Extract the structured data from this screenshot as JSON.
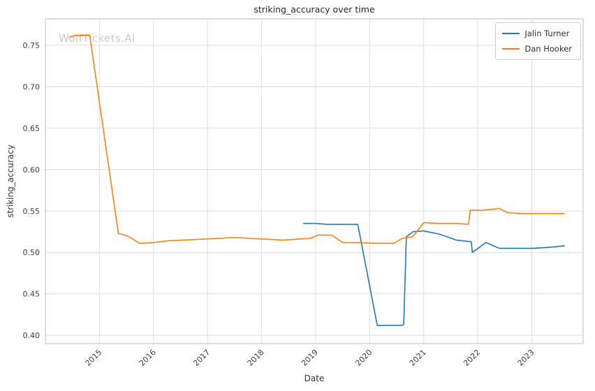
{
  "watermark": "WolfTickets.AI",
  "chart_data": {
    "type": "line",
    "title": "striking_accuracy over time",
    "xlabel": "Date",
    "ylabel": "striking_accuracy",
    "xlim": [
      2014.0,
      2023.95
    ],
    "ylim": [
      0.39,
      0.782
    ],
    "xticks": [
      2015,
      2016,
      2017,
      2018,
      2019,
      2020,
      2021,
      2022,
      2023
    ],
    "yticks": [
      0.4,
      0.45,
      0.5,
      0.55,
      0.6,
      0.65,
      0.7,
      0.75
    ],
    "grid": true,
    "legend_position": "upper right",
    "series": [
      {
        "name": "Jalin Turner",
        "color": "#1f77b4",
        "points": [
          [
            2018.78,
            0.535
          ],
          [
            2019.0,
            0.535
          ],
          [
            2019.2,
            0.534
          ],
          [
            2019.5,
            0.534
          ],
          [
            2019.78,
            0.534
          ],
          [
            2020.14,
            0.412
          ],
          [
            2020.3,
            0.412
          ],
          [
            2020.6,
            0.412
          ],
          [
            2020.63,
            0.413
          ],
          [
            2020.68,
            0.519
          ],
          [
            2020.8,
            0.525
          ],
          [
            2021.0,
            0.526
          ],
          [
            2021.3,
            0.522
          ],
          [
            2021.6,
            0.515
          ],
          [
            2021.88,
            0.513
          ],
          [
            2021.9,
            0.5
          ],
          [
            2022.15,
            0.512
          ],
          [
            2022.4,
            0.505
          ],
          [
            2022.7,
            0.505
          ],
          [
            2023.0,
            0.505
          ],
          [
            2023.3,
            0.506
          ],
          [
            2023.6,
            0.508
          ]
        ]
      },
      {
        "name": "Dan Hooker",
        "color": "#ff7f0e",
        "points": [
          [
            2014.45,
            0.76
          ],
          [
            2014.55,
            0.762
          ],
          [
            2014.82,
            0.762
          ],
          [
            2015.35,
            0.523
          ],
          [
            2015.52,
            0.52
          ],
          [
            2015.75,
            0.511
          ],
          [
            2016.0,
            0.512
          ],
          [
            2016.25,
            0.514
          ],
          [
            2016.55,
            0.515
          ],
          [
            2016.9,
            0.516
          ],
          [
            2017.2,
            0.517
          ],
          [
            2017.5,
            0.518
          ],
          [
            2017.8,
            0.517
          ],
          [
            2018.1,
            0.516
          ],
          [
            2018.4,
            0.515
          ],
          [
            2018.65,
            0.516
          ],
          [
            2018.9,
            0.517
          ],
          [
            2019.05,
            0.521
          ],
          [
            2019.3,
            0.521
          ],
          [
            2019.5,
            0.512
          ],
          [
            2019.8,
            0.512
          ],
          [
            2020.1,
            0.511
          ],
          [
            2020.45,
            0.511
          ],
          [
            2020.6,
            0.517
          ],
          [
            2020.8,
            0.519
          ],
          [
            2021.0,
            0.536
          ],
          [
            2021.3,
            0.535
          ],
          [
            2021.6,
            0.535
          ],
          [
            2021.83,
            0.534
          ],
          [
            2021.86,
            0.551
          ],
          [
            2022.1,
            0.551
          ],
          [
            2022.25,
            0.552
          ],
          [
            2022.4,
            0.553
          ],
          [
            2022.55,
            0.548
          ],
          [
            2022.85,
            0.547
          ],
          [
            2023.2,
            0.547
          ],
          [
            2023.6,
            0.547
          ]
        ]
      }
    ]
  }
}
